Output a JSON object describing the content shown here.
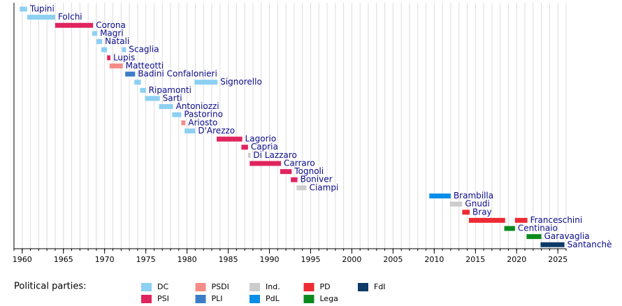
{
  "chart_data": {
    "type": "timeline",
    "xlim": [
      1959,
      2026
    ],
    "xticks": [
      1960,
      1965,
      1970,
      1975,
      1980,
      1985,
      1990,
      1995,
      2000,
      2005,
      2010,
      2015,
      2020,
      2025
    ],
    "minor_step": 1,
    "grid": true,
    "legend_title": "Political parties:",
    "legend": [
      {
        "name": "DC",
        "color": "#8dd0f2"
      },
      {
        "name": "PSI",
        "color": "#e0245e"
      },
      {
        "name": "PSDI",
        "color": "#f58c88"
      },
      {
        "name": "PLI",
        "color": "#3d7cc9"
      },
      {
        "name": "Ind.",
        "color": "#cccccc"
      },
      {
        "name": "PdL",
        "color": "#0a8ee8"
      },
      {
        "name": "PD",
        "color": "#ee2a35"
      },
      {
        "name": "Lega",
        "color": "#0b8a1e"
      },
      {
        "name": "FdI",
        "color": "#0d3a68"
      }
    ],
    "series": [
      {
        "name": "Tupini",
        "color": "#8dd0f2",
        "periods": [
          [
            1959.7,
            1960.6
          ]
        ]
      },
      {
        "name": "Folchi",
        "color": "#8dd0f2",
        "periods": [
          [
            1960.6,
            1964.0
          ]
        ]
      },
      {
        "name": "Corona",
        "color": "#e0245e",
        "periods": [
          [
            1964.0,
            1968.6
          ]
        ]
      },
      {
        "name": "Magri",
        "color": "#8dd0f2",
        "periods": [
          [
            1968.5,
            1969.1
          ]
        ]
      },
      {
        "name": "Natali",
        "color": "#8dd0f2",
        "periods": [
          [
            1969.0,
            1969.7
          ]
        ]
      },
      {
        "name": "Scaglia",
        "color": "#8dd0f2",
        "periods": [
          [
            1969.6,
            1970.3
          ],
          [
            1972.1,
            1972.6
          ]
        ]
      },
      {
        "name": "Lupis",
        "color": "#e0245e",
        "periods": [
          [
            1970.3,
            1970.7
          ]
        ]
      },
      {
        "name": "Matteotti",
        "color": "#f58c88",
        "periods": [
          [
            1970.6,
            1972.2
          ]
        ]
      },
      {
        "name": "Badini Confalonieri",
        "color": "#3d7cc9",
        "periods": [
          [
            1972.5,
            1973.7
          ]
        ]
      },
      {
        "name": "Signorello",
        "color": "#8dd0f2",
        "periods": [
          [
            1973.6,
            1974.4
          ],
          [
            1980.9,
            1983.7
          ]
        ]
      },
      {
        "name": "Ripamonti",
        "color": "#8dd0f2",
        "periods": [
          [
            1974.3,
            1975.0
          ]
        ]
      },
      {
        "name": "Sarti",
        "color": "#8dd0f2",
        "periods": [
          [
            1974.9,
            1976.7
          ]
        ]
      },
      {
        "name": "Antoniozzi",
        "color": "#8dd0f2",
        "periods": [
          [
            1976.6,
            1978.3
          ]
        ]
      },
      {
        "name": "Pastorino",
        "color": "#8dd0f2",
        "periods": [
          [
            1978.2,
            1979.3
          ]
        ]
      },
      {
        "name": "Ariosto",
        "color": "#f58c88",
        "periods": [
          [
            1979.3,
            1979.8
          ]
        ]
      },
      {
        "name": "D'Arezzo",
        "color": "#8dd0f2",
        "periods": [
          [
            1979.7,
            1981.0
          ]
        ]
      },
      {
        "name": "Lagorio",
        "color": "#e0245e",
        "periods": [
          [
            1983.6,
            1986.7
          ]
        ]
      },
      {
        "name": "Capria",
        "color": "#e0245e",
        "periods": [
          [
            1986.6,
            1987.4
          ]
        ]
      },
      {
        "name": "Di Lazzaro",
        "color": "#cccccc",
        "periods": [
          [
            1987.4,
            1987.7
          ]
        ]
      },
      {
        "name": "Carraro",
        "color": "#e0245e",
        "periods": [
          [
            1987.6,
            1991.4
          ]
        ]
      },
      {
        "name": "Tognoli",
        "color": "#e0245e",
        "periods": [
          [
            1991.3,
            1992.7
          ]
        ]
      },
      {
        "name": "Boniver",
        "color": "#e0245e",
        "periods": [
          [
            1992.6,
            1993.4
          ]
        ]
      },
      {
        "name": "Ciampi",
        "color": "#cccccc",
        "periods": [
          [
            1993.3,
            1994.5
          ]
        ]
      },
      {
        "name": "Brambilla",
        "color": "#0a8ee8",
        "periods": [
          [
            2009.4,
            2012.0
          ]
        ]
      },
      {
        "name": "Gnudi",
        "color": "#cccccc",
        "periods": [
          [
            2011.9,
            2013.4
          ]
        ]
      },
      {
        "name": "Bray",
        "color": "#ee2a35",
        "periods": [
          [
            2013.4,
            2014.3
          ]
        ]
      },
      {
        "name": "Franceschini",
        "color": "#ee2a35",
        "periods": [
          [
            2014.2,
            2018.6
          ],
          [
            2019.8,
            2021.3
          ]
        ]
      },
      {
        "name": "Centinaio",
        "color": "#0b8a1e",
        "periods": [
          [
            2018.5,
            2019.8
          ]
        ]
      },
      {
        "name": "Garavaglia",
        "color": "#0b8a1e",
        "periods": [
          [
            2021.2,
            2023.0
          ]
        ]
      },
      {
        "name": "Santanchè",
        "color": "#0d3a68",
        "periods": [
          [
            2022.9,
            2025.8
          ]
        ]
      }
    ]
  }
}
